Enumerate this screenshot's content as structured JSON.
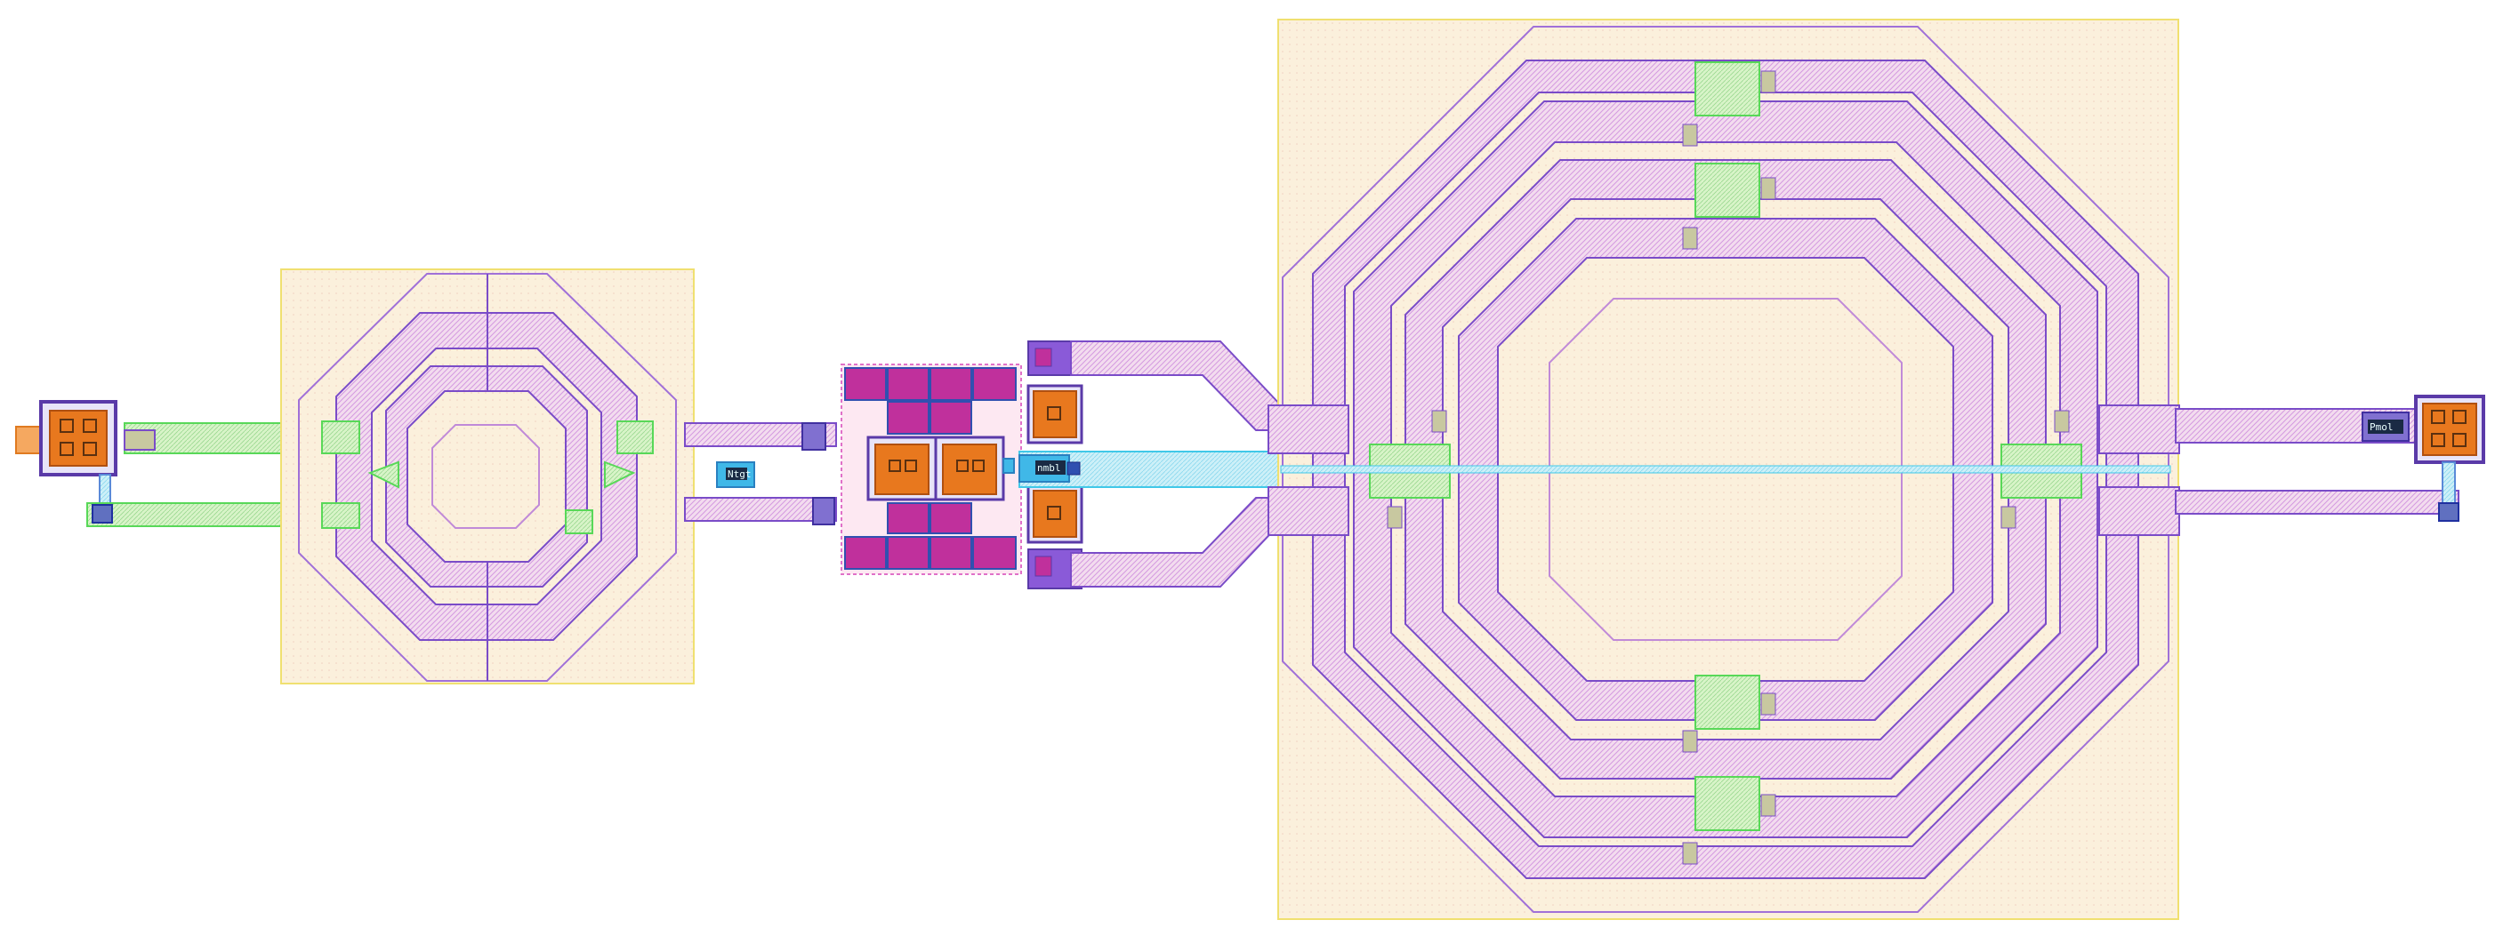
{
  "colors": {
    "background": "#ffffff",
    "substrate_fill": "#fbf0dc",
    "substrate_stroke": "#f0e070",
    "metal_top": "#b070d8",
    "metal_hatch": "#e0b4e8",
    "metal_stroke": "#7a4cc8",
    "route_green": "#58d858",
    "route_cyan": "#40c8e8",
    "pad_orange": "#e8781e",
    "pad_frame": "#5a3aa8",
    "transistor_magenta": "#c0309c",
    "via_fill": "#a8e8a0"
  },
  "labels": {
    "label_a": "Ntgt",
    "label_b": "nmbl",
    "label_c": "Pmol"
  },
  "components": {
    "left_pad": "pad",
    "small_inductor": "inductor",
    "transistor_array": "transistor-array",
    "large_inductor": "transformer-inductor",
    "right_pad": "pad"
  }
}
